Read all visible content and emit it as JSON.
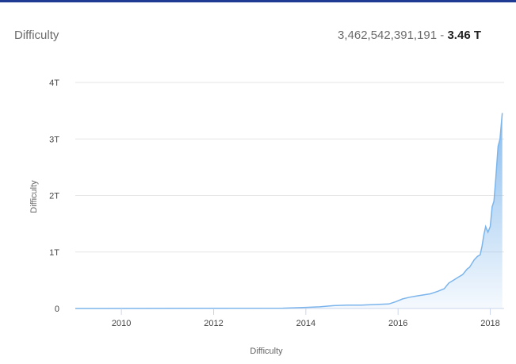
{
  "header": {
    "title": "Difficulty",
    "value_full": "3,462,542,391,191",
    "separator": " - ",
    "value_short": "3.46 T"
  },
  "colors": {
    "frame": "#1f3a93",
    "line": "#7cb5ec",
    "fill_top": "#7cb5ec",
    "grid": "#e6e6e6"
  },
  "chart_data": {
    "type": "area",
    "title": "Difficulty",
    "xlabel": "Difficulty",
    "ylabel": "Difficulty",
    "grid": true,
    "xlim": [
      2009.0,
      2018.3
    ],
    "ylim": [
      0,
      4
    ],
    "y_unit": "T",
    "x_ticks": [
      "2010",
      "2012",
      "2014",
      "2016",
      "2018"
    ],
    "y_ticks": [
      "0",
      "1T",
      "2T",
      "3T",
      "4T"
    ],
    "series": [
      {
        "x": [
          2009.0,
          2013.5,
          2014.0,
          2014.3,
          2014.6,
          2014.9,
          2015.2,
          2015.5,
          2015.8,
          2015.95,
          2016.1,
          2016.25,
          2016.4,
          2016.55,
          2016.7,
          2016.85,
          2017.0,
          2017.1,
          2017.2,
          2017.3,
          2017.4,
          2017.5,
          2017.55,
          2017.65,
          2017.72,
          2017.78,
          2017.82,
          2017.86,
          2017.9,
          2017.95,
          2018.0,
          2018.04,
          2018.08,
          2018.12,
          2018.17,
          2018.21,
          2018.26
        ],
        "y": [
          0,
          0.005,
          0.02,
          0.03,
          0.05,
          0.06,
          0.06,
          0.07,
          0.08,
          0.12,
          0.17,
          0.2,
          0.22,
          0.24,
          0.26,
          0.3,
          0.35,
          0.45,
          0.5,
          0.55,
          0.6,
          0.7,
          0.73,
          0.86,
          0.92,
          0.95,
          1.1,
          1.3,
          1.45,
          1.35,
          1.45,
          1.8,
          1.9,
          2.3,
          2.87,
          3.0,
          3.46
        ]
      }
    ]
  }
}
